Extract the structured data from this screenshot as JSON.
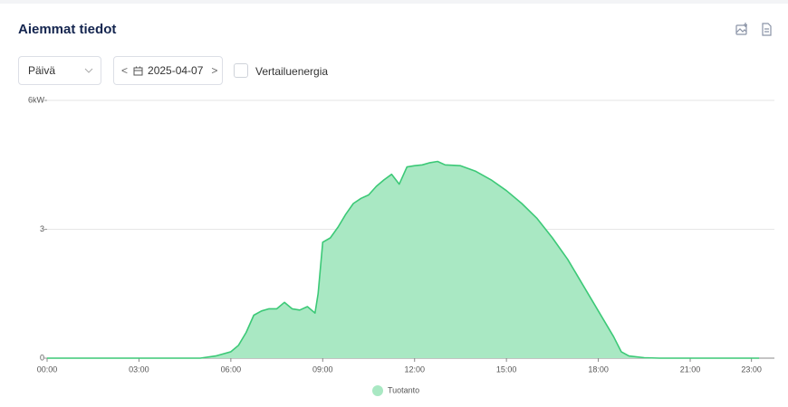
{
  "header": {
    "title": "Aiemmat tiedot"
  },
  "controls": {
    "period": "Päivä",
    "date": "2025-04-07",
    "compare": "Vertailuenergia"
  },
  "chart_data": {
    "type": "area",
    "x": [
      0,
      5,
      5.5,
      6,
      6.25,
      6.5,
      6.75,
      7,
      7.25,
      7.5,
      7.75,
      8,
      8.25,
      8.5,
      8.75,
      8.85,
      9,
      9.25,
      9.5,
      9.75,
      10,
      10.25,
      10.5,
      10.75,
      11,
      11.25,
      11.5,
      11.75,
      12,
      12.25,
      12.5,
      12.75,
      13,
      13.5,
      14,
      14.5,
      15,
      15.5,
      16,
      16.5,
      17,
      17.5,
      18,
      18.5,
      18.75,
      19,
      19.5,
      20,
      23.25
    ],
    "series": [
      {
        "name": "Tuotanto",
        "color": "#3cc977",
        "fill": "#a9e8c3",
        "values": [
          0,
          0,
          0.05,
          0.15,
          0.3,
          0.6,
          1.0,
          1.1,
          1.15,
          1.15,
          1.3,
          1.15,
          1.12,
          1.2,
          1.05,
          1.5,
          2.7,
          2.8,
          3.05,
          3.35,
          3.6,
          3.72,
          3.8,
          4.0,
          4.15,
          4.28,
          4.05,
          4.45,
          4.48,
          4.5,
          4.55,
          4.58,
          4.5,
          4.48,
          4.35,
          4.15,
          3.9,
          3.6,
          3.25,
          2.8,
          2.3,
          1.7,
          1.1,
          0.5,
          0.15,
          0.05,
          0.01,
          0,
          0
        ]
      }
    ],
    "xlim": [
      0,
      23.75
    ],
    "xticks": [
      {
        "value": 0,
        "label": "00:00"
      },
      {
        "value": 3,
        "label": "03:00"
      },
      {
        "value": 6,
        "label": "06:00"
      },
      {
        "value": 9,
        "label": "09:00"
      },
      {
        "value": 12,
        "label": "12:00"
      },
      {
        "value": 15,
        "label": "15:00"
      },
      {
        "value": 18,
        "label": "18:00"
      },
      {
        "value": 21,
        "label": "21:00"
      },
      {
        "value": 23,
        "label": "23:00"
      }
    ],
    "ylim": [
      0,
      6
    ],
    "yticks": [
      0,
      3,
      {
        "value": 6,
        "label": "6kW"
      }
    ],
    "grid": true
  }
}
